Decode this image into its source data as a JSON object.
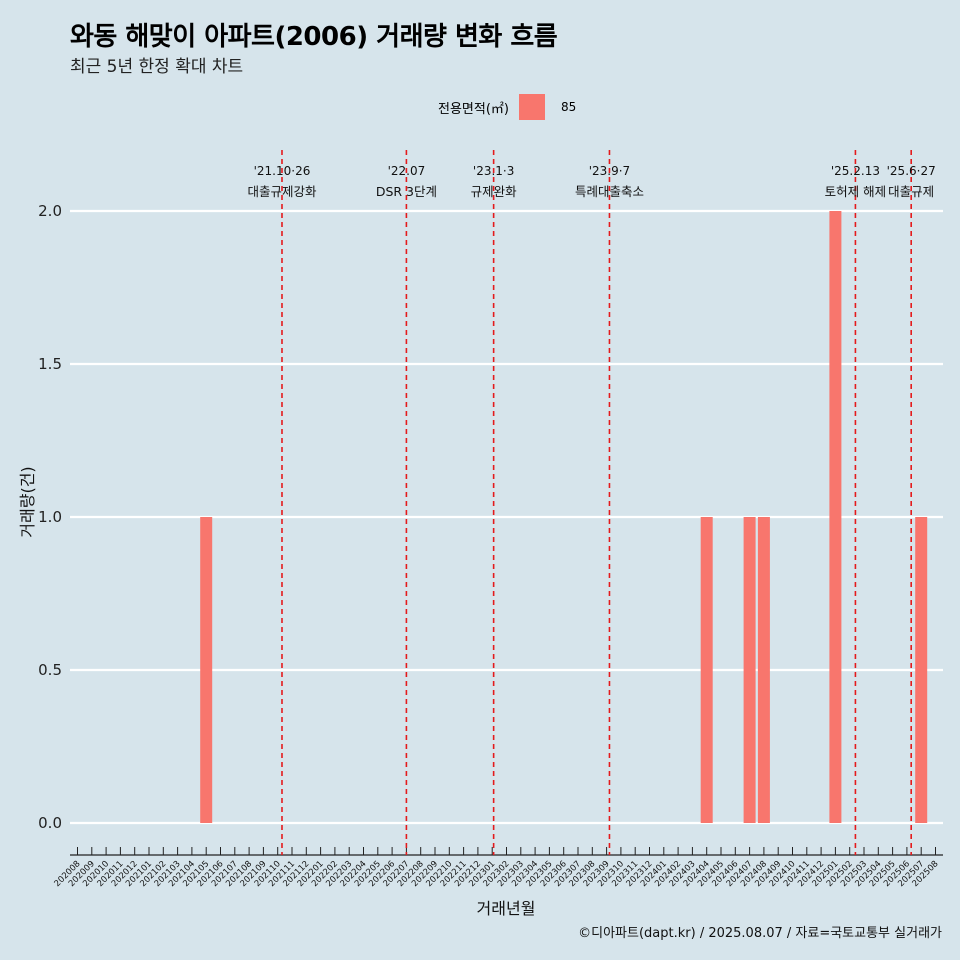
{
  "title": "와동 해맞이 아파트(2006) 거래량 변화 흐름",
  "subtitle": "최근 5년 한정 확대 차트",
  "caption": "©디아파트(dapt.kr) / 2025.08.07 / 자료=국토교통부 실거래가",
  "legend": {
    "title": "전용면적(㎡)",
    "entries": [
      {
        "label": "85",
        "color": "#f8766d"
      }
    ]
  },
  "chart_data": {
    "type": "bar",
    "xlabel": "거래년월",
    "ylabel": "거래량(건)",
    "ylim": [
      -0.09,
      2.2
    ],
    "yticks": [
      "0.0",
      "0.5",
      "1.0",
      "1.5",
      "2.0"
    ],
    "categories": [
      "202008",
      "202009",
      "202010",
      "202011",
      "202012",
      "202101",
      "202102",
      "202103",
      "202104",
      "202105",
      "202106",
      "202107",
      "202108",
      "202109",
      "202110",
      "202111",
      "202112",
      "202201",
      "202202",
      "202203",
      "202204",
      "202205",
      "202206",
      "202207",
      "202208",
      "202209",
      "202210",
      "202211",
      "202212",
      "202301",
      "202302",
      "202303",
      "202304",
      "202305",
      "202306",
      "202307",
      "202308",
      "202309",
      "202310",
      "202311",
      "202312",
      "202401",
      "202402",
      "202403",
      "202404",
      "202405",
      "202406",
      "202407",
      "202408",
      "202409",
      "202410",
      "202411",
      "202412",
      "202501",
      "202502",
      "202503",
      "202504",
      "202505",
      "202506",
      "202507",
      "202508"
    ],
    "series": [
      {
        "name": "85",
        "color": "#f8766d",
        "values": [
          0,
          0,
          0,
          0,
          0,
          0,
          0,
          0,
          0,
          1,
          0,
          0,
          0,
          0,
          0,
          0,
          0,
          0,
          0,
          0,
          0,
          0,
          0,
          0,
          0,
          0,
          0,
          0,
          0,
          0,
          0,
          0,
          0,
          0,
          0,
          0,
          0,
          0,
          0,
          0,
          0,
          0,
          0,
          0,
          1,
          0,
          0,
          1,
          1,
          0,
          0,
          0,
          0,
          2,
          0,
          0,
          0,
          0,
          0,
          1,
          0
        ]
      }
    ],
    "events": [
      {
        "date": "'21.10·26",
        "label": "대출규제강화",
        "pos": 14.3
      },
      {
        "date": "'22.07",
        "label": "DSR 3단계",
        "pos": 23.0
      },
      {
        "date": "'23.1·3",
        "label": "규제완화",
        "pos": 29.1
      },
      {
        "date": "'23.9·7",
        "label": "특례대출축소",
        "pos": 37.2
      },
      {
        "date": "'25.2.13",
        "label": "토허제 해제",
        "pos": 54.4
      },
      {
        "date": "'25.6·27",
        "label": "대출규제",
        "pos": 58.3
      }
    ]
  }
}
